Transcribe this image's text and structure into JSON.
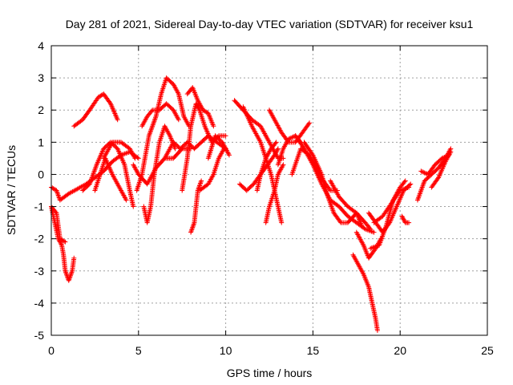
{
  "chart_data": {
    "type": "scatter",
    "title": "Day 281 of 2021, Sidereal Day-to-day VTEC variation (SDTVAR) for receiver ksu1",
    "xlabel": "GPS time / hours",
    "ylabel": "SDTVAR / TECUs",
    "xlim": [
      0,
      25
    ],
    "ylim": [
      -5,
      4
    ],
    "xticks": [
      0,
      5,
      10,
      15,
      20,
      25
    ],
    "yticks": [
      -5,
      -4,
      -3,
      -2,
      -1,
      0,
      1,
      2,
      3,
      4
    ],
    "grid": true,
    "marker": "+",
    "series": [
      {
        "name": "SDTVAR",
        "color": "#ff0000",
        "tracks": [
          [
            [
              0,
              -0.4
            ],
            [
              0.3,
              -0.5
            ],
            [
              0.5,
              -0.8
            ],
            [
              1,
              -0.6
            ],
            [
              2,
              -0.3
            ],
            [
              3,
              0.1
            ],
            [
              3.5,
              0.4
            ],
            [
              4,
              0.6
            ],
            [
              4.5,
              0.7
            ],
            [
              5,
              0.5
            ]
          ],
          [
            [
              0,
              -1
            ],
            [
              0.2,
              -1.5
            ],
            [
              0.4,
              -2
            ],
            [
              0.6,
              -2.2
            ],
            [
              0.7,
              -2.5
            ],
            [
              0.8,
              -3
            ],
            [
              1,
              -3.3
            ],
            [
              1.2,
              -3
            ],
            [
              1.3,
              -2.6
            ]
          ],
          [
            [
              0,
              -1
            ],
            [
              0.3,
              -1.2
            ],
            [
              0.5,
              -2
            ],
            [
              0.8,
              -2.1
            ]
          ],
          [
            [
              1.3,
              1.5
            ],
            [
              1.8,
              1.7
            ],
            [
              2.2,
              2
            ],
            [
              2.7,
              2.4
            ],
            [
              3,
              2.5
            ],
            [
              3.4,
              2.2
            ],
            [
              3.8,
              1.7
            ]
          ],
          [
            [
              1.8,
              -0.5
            ],
            [
              2.2,
              -0.3
            ],
            [
              2.6,
              0.3
            ],
            [
              3,
              0.8
            ],
            [
              3.4,
              1
            ],
            [
              3.8,
              0.8
            ],
            [
              4.2,
              0.3
            ],
            [
              4.5,
              -0.5
            ],
            [
              4.7,
              -1
            ]
          ],
          [
            [
              2.5,
              -0.5
            ],
            [
              2.8,
              0
            ],
            [
              3.1,
              0.5
            ],
            [
              3.5,
              0
            ],
            [
              4,
              -0.5
            ],
            [
              4.3,
              -0.8
            ]
          ],
          [
            [
              3,
              0.5
            ],
            [
              3.5,
              1
            ],
            [
              4,
              1
            ],
            [
              4.5,
              0.8
            ],
            [
              4.8,
              0.5
            ]
          ],
          [
            [
              4.7,
              0.3
            ],
            [
              5,
              0
            ],
            [
              5.5,
              -0.3
            ],
            [
              6,
              0.2
            ],
            [
              6.5,
              0.5
            ],
            [
              7,
              0.5
            ],
            [
              7.5,
              0.8
            ],
            [
              8,
              0.8
            ]
          ],
          [
            [
              4.9,
              -0.5
            ],
            [
              5.2,
              0
            ],
            [
              5.6,
              1.2
            ],
            [
              5.8,
              1.5
            ],
            [
              6,
              1.8
            ],
            [
              6.3,
              2.5
            ],
            [
              6.6,
              3
            ],
            [
              7,
              2.8
            ],
            [
              7.3,
              2.5
            ],
            [
              7.6,
              1.8
            ],
            [
              7.9,
              1.5
            ]
          ],
          [
            [
              5.2,
              1.5
            ],
            [
              5.5,
              1.8
            ],
            [
              5.8,
              2
            ],
            [
              6.2,
              2
            ],
            [
              6.6,
              2.2
            ],
            [
              7,
              2
            ],
            [
              7.3,
              1.7
            ]
          ],
          [
            [
              5.3,
              -1
            ],
            [
              5.5,
              -1.5
            ],
            [
              5.7,
              -1
            ],
            [
              5.9,
              0
            ],
            [
              6.2,
              1
            ],
            [
              6.5,
              1.5
            ],
            [
              6.8,
              1.2
            ],
            [
              7.1,
              0.8
            ]
          ],
          [
            [
              6.5,
              0.5
            ],
            [
              7,
              1
            ],
            [
              7.4,
              0.8
            ],
            [
              7.8,
              1
            ],
            [
              8.2,
              0.8
            ],
            [
              8.6,
              1
            ],
            [
              9,
              1.2
            ],
            [
              9.5,
              1
            ],
            [
              10,
              0.8
            ]
          ],
          [
            [
              7.5,
              -0.5
            ],
            [
              7.8,
              0.5
            ],
            [
              8,
              1.5
            ],
            [
              8.3,
              2.2
            ],
            [
              8.5,
              2
            ],
            [
              8.8,
              1.5
            ],
            [
              9.2,
              1
            ],
            [
              9.6,
              1.2
            ],
            [
              10,
              1.2
            ]
          ],
          [
            [
              7.8,
              2.5
            ],
            [
              8.1,
              2.7
            ],
            [
              8.4,
              2.3
            ],
            [
              8.7,
              2
            ],
            [
              9,
              1.9
            ],
            [
              9.3,
              1.5
            ]
          ],
          [
            [
              8,
              -1.8
            ],
            [
              8.2,
              -1.5
            ],
            [
              8.4,
              -0.5
            ],
            [
              8.6,
              -0.2
            ]
          ],
          [
            [
              8.5,
              -0.5
            ],
            [
              9,
              -0.3
            ],
            [
              9.3,
              0
            ],
            [
              9.6,
              0.5
            ],
            [
              9.9,
              0.8
            ]
          ],
          [
            [
              9,
              0.5
            ],
            [
              9.4,
              1.2
            ],
            [
              9.8,
              1
            ],
            [
              10.2,
              0.6
            ]
          ],
          [
            [
              10.5,
              2.3
            ],
            [
              11,
              2
            ],
            [
              11.5,
              1.7
            ],
            [
              12,
              1.5
            ],
            [
              12.5,
              1
            ],
            [
              13,
              0.5
            ],
            [
              13.3,
              0.5
            ]
          ],
          [
            [
              10.8,
              -0.3
            ],
            [
              11.2,
              -0.5
            ],
            [
              11.6,
              -0.3
            ],
            [
              12,
              0
            ],
            [
              12.4,
              0.3
            ],
            [
              12.8,
              0.6
            ],
            [
              13,
              0.8
            ]
          ],
          [
            [
              11,
              2.1
            ],
            [
              11.5,
              1.5
            ],
            [
              12,
              1
            ],
            [
              12.3,
              0.5
            ],
            [
              12.6,
              0
            ],
            [
              12.8,
              -0.5
            ],
            [
              13,
              -1
            ],
            [
              13.2,
              -1.5
            ]
          ],
          [
            [
              11.8,
              -0.5
            ],
            [
              12,
              0
            ],
            [
              12.3,
              0.5
            ],
            [
              12.6,
              0.8
            ],
            [
              12.9,
              1
            ]
          ],
          [
            [
              12.3,
              -1.5
            ],
            [
              12.5,
              -1
            ],
            [
              12.8,
              -0.5
            ],
            [
              13,
              0
            ],
            [
              13.3,
              0.3
            ]
          ],
          [
            [
              12.5,
              2
            ],
            [
              12.8,
              1.7
            ],
            [
              13.2,
              1.3
            ],
            [
              13.6,
              1
            ],
            [
              14,
              1
            ],
            [
              14.4,
              1.3
            ],
            [
              14.8,
              1.6
            ]
          ],
          [
            [
              13,
              0.3
            ],
            [
              13.3,
              0.8
            ],
            [
              13.6,
              1.1
            ],
            [
              14,
              1.2
            ],
            [
              14.3,
              1
            ]
          ],
          [
            [
              13.8,
              0
            ],
            [
              14.3,
              0.8
            ],
            [
              14.8,
              0.6
            ],
            [
              15.2,
              0.2
            ],
            [
              15.6,
              -0.2
            ],
            [
              16,
              -0.5
            ],
            [
              16.4,
              -0.5
            ]
          ],
          [
            [
              14,
              1.2
            ],
            [
              14.5,
              0.8
            ],
            [
              15,
              0.3
            ],
            [
              15.5,
              -0.3
            ],
            [
              16,
              -0.8
            ],
            [
              16.5,
              -1
            ],
            [
              17,
              -1.3
            ],
            [
              17.5,
              -1.5
            ],
            [
              18,
              -1.7
            ],
            [
              18.5,
              -1.8
            ]
          ],
          [
            [
              14.5,
              1
            ],
            [
              15,
              0.6
            ],
            [
              15.5,
              0
            ],
            [
              15.8,
              -0.6
            ],
            [
              16.2,
              -1.2
            ],
            [
              16.6,
              -1.5
            ],
            [
              17,
              -1.5
            ],
            [
              17.5,
              -1.2
            ],
            [
              17.8,
              -1.6
            ]
          ],
          [
            [
              16,
              -0.2
            ],
            [
              16.5,
              -0.7
            ],
            [
              17,
              -1
            ],
            [
              17.5,
              -1.2
            ],
            [
              18,
              -1.5
            ],
            [
              18.3,
              -1.7
            ]
          ],
          [
            [
              17.3,
              -2.5
            ],
            [
              17.6,
              -2.8
            ],
            [
              17.9,
              -3.1
            ],
            [
              18.2,
              -3.5
            ],
            [
              18.4,
              -4
            ],
            [
              18.6,
              -4.5
            ],
            [
              18.7,
              -4.85
            ]
          ],
          [
            [
              17.5,
              -1.8
            ],
            [
              17.9,
              -2.2
            ],
            [
              18.2,
              -2.6
            ],
            [
              18.6,
              -2.3
            ],
            [
              18.9,
              -2
            ]
          ],
          [
            [
              18.2,
              -1.2
            ],
            [
              18.6,
              -1.5
            ],
            [
              19,
              -1.8
            ],
            [
              19.4,
              -1.5
            ],
            [
              19.8,
              -1
            ],
            [
              20.2,
              -0.5
            ],
            [
              20.6,
              -0.3
            ]
          ],
          [
            [
              18.3,
              -2.3
            ],
            [
              18.8,
              -2.2
            ],
            [
              19.2,
              -1.6
            ],
            [
              19.6,
              -0.8
            ],
            [
              20,
              -0.4
            ],
            [
              20.3,
              -0.2
            ]
          ],
          [
            [
              18.5,
              -1.5
            ],
            [
              19,
              -1.3
            ],
            [
              19.5,
              -0.9
            ],
            [
              20,
              -0.5
            ],
            [
              20.5,
              -0.4
            ]
          ],
          [
            [
              20.1,
              -1.3
            ],
            [
              20.3,
              -1.5
            ],
            [
              20.5,
              -1.5
            ]
          ],
          [
            [
              21,
              -0.8
            ],
            [
              21.4,
              -0.2
            ],
            [
              21.8,
              0
            ],
            [
              22.2,
              0.2
            ],
            [
              22.6,
              0.5
            ],
            [
              22.9,
              0.8
            ]
          ],
          [
            [
              21.2,
              0.1
            ],
            [
              21.6,
              0
            ],
            [
              22,
              0.3
            ],
            [
              22.4,
              0.5
            ],
            [
              22.8,
              0.6
            ]
          ],
          [
            [
              21.8,
              -0.4
            ],
            [
              22.2,
              -0.1
            ],
            [
              22.6,
              0.4
            ],
            [
              22.9,
              0.7
            ]
          ]
        ]
      }
    ]
  }
}
